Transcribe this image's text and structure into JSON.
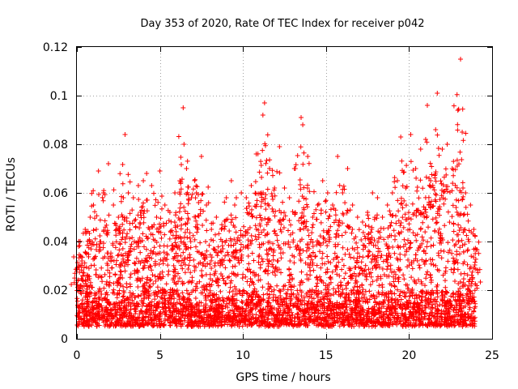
{
  "chart_data": {
    "type": "scatter",
    "title": "Day 353 of 2020, Rate Of TEC Index for receiver p042",
    "xlabel": "GPS time / hours",
    "ylabel": "ROTI / TECUs",
    "xlim": [
      0,
      25
    ],
    "ylim": [
      0,
      0.12
    ],
    "xticks": [
      0,
      5,
      10,
      15,
      20,
      25
    ],
    "xtick_labels": [
      "0",
      "5",
      "10",
      "15",
      "20",
      "25"
    ],
    "yticks": [
      0,
      0.02,
      0.04,
      0.06,
      0.08,
      0.1,
      0.12
    ],
    "ytick_labels": [
      "0",
      "0.02",
      "0.04",
      "0.06",
      "0.08",
      "0.1",
      "0.12"
    ],
    "grid": true,
    "marker": "+",
    "series": [
      {
        "name": "ROTI",
        "color": "#ff0000",
        "x": [
          0.1,
          0.3,
          0.5,
          0.8,
          1.0,
          1.3,
          1.6,
          1.9,
          2.2,
          2.5,
          2.8,
          2.9,
          3.1,
          3.4,
          3.7,
          4.0,
          4.2,
          4.5,
          4.8,
          5.0,
          5.3,
          5.6,
          5.9,
          6.2,
          6.4,
          6.45,
          6.6,
          6.9,
          7.2,
          7.5,
          7.8,
          8.1,
          8.4,
          8.7,
          9.0,
          9.3,
          9.6,
          9.9,
          10.2,
          10.5,
          10.8,
          11.1,
          11.2,
          11.3,
          11.6,
          11.9,
          12.2,
          12.5,
          12.8,
          13.1,
          13.5,
          13.6,
          13.9,
          14.2,
          14.5,
          14.8,
          15.1,
          15.4,
          15.7,
          16.0,
          16.3,
          16.6,
          16.9,
          17.2,
          17.5,
          17.8,
          18.1,
          18.4,
          18.7,
          19.0,
          19.3,
          19.5,
          19.8,
          20.1,
          20.4,
          20.7,
          21.0,
          21.1,
          21.3,
          21.6,
          21.7,
          22.0,
          22.3,
          22.6,
          22.9,
          23.1,
          23.2,
          23.4,
          23.7,
          23.9
        ],
        "y": [
          0.038,
          0.032,
          0.045,
          0.05,
          0.055,
          0.069,
          0.06,
          0.072,
          0.055,
          0.05,
          0.058,
          0.084,
          0.06,
          0.058,
          0.063,
          0.065,
          0.068,
          0.063,
          0.05,
          0.069,
          0.055,
          0.052,
          0.06,
          0.065,
          0.095,
          0.08,
          0.07,
          0.058,
          0.06,
          0.075,
          0.055,
          0.045,
          0.05,
          0.045,
          0.058,
          0.065,
          0.058,
          0.06,
          0.058,
          0.063,
          0.076,
          0.06,
          0.092,
          0.097,
          0.07,
          0.062,
          0.079,
          0.062,
          0.058,
          0.07,
          0.091,
          0.088,
          0.075,
          0.05,
          0.055,
          0.065,
          0.06,
          0.055,
          0.075,
          0.06,
          0.07,
          0.055,
          0.05,
          0.048,
          0.052,
          0.06,
          0.058,
          0.05,
          0.055,
          0.06,
          0.065,
          0.083,
          0.062,
          0.084,
          0.07,
          0.078,
          0.082,
          0.096,
          0.065,
          0.086,
          0.101,
          0.078,
          0.08,
          0.07,
          0.071,
          0.115,
          0.085,
          0.06,
          0.055,
          0.045
        ],
        "noise_floor_range": [
          0.005,
          0.02
        ],
        "noise_floor_coverage_hours": [
          0,
          24
        ]
      }
    ]
  }
}
